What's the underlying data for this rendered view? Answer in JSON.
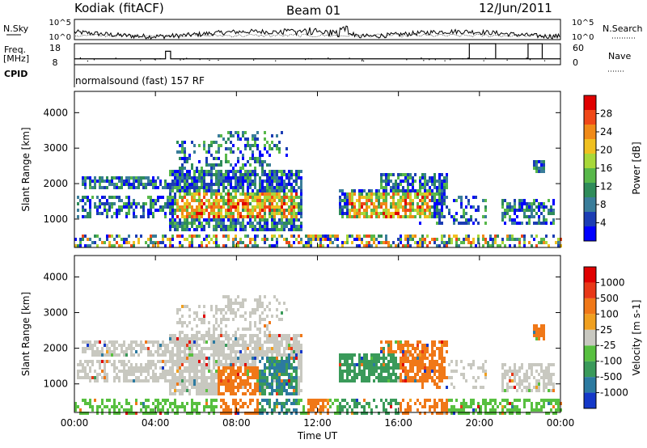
{
  "header": {
    "station": "Kodiak (fitACF)",
    "beam": "Beam 01",
    "date": "12/Jun/2011"
  },
  "labels": {
    "nsky": "N.Sky",
    "freq": "Freq.",
    "freq_unit": "[MHz]",
    "cpid": "CPID",
    "nsearch": "N.Search",
    "nave": "Nave",
    "mode": "normalsound (fast) 157 RF",
    "ylabel": "Slant Range [km]",
    "xlabel": "Time UT"
  },
  "chart_data": [
    {
      "type": "line",
      "panel": "noise",
      "left_axis": {
        "label": "N.Sky",
        "ticks": [
          "10^5",
          "10^0"
        ]
      },
      "right_axis": {
        "label": "N.Search",
        "ticks": [
          "10^5",
          "10^0"
        ]
      },
      "xlim": [
        "00:00",
        "00:00"
      ]
    },
    {
      "type": "line",
      "panel": "frequency",
      "left_axis": {
        "label": "Freq. [MHz]",
        "ticks": [
          18,
          8
        ]
      },
      "right_axis": {
        "label": "Nave",
        "ticks": [
          60,
          0
        ]
      },
      "freq_mhz": [
        10.8,
        10.8,
        14.4,
        10.8,
        10.8,
        10.8,
        10.8,
        10.8,
        10.8,
        10.8,
        10.8,
        10.8
      ],
      "nave": [
        {
          "start_h": 19.5,
          "end_h": 20.8,
          "value": 60
        },
        {
          "start_h": 22.4,
          "end_h": 23.1,
          "value": 60
        }
      ],
      "freq_spike": {
        "start_h": 4.5,
        "end_h": 4.75,
        "value": 14.4
      }
    },
    {
      "type": "heatmap",
      "panel": "power",
      "title": "Power [dB]",
      "ylabel": "Slant Range [km]",
      "y_ticks": [
        1000,
        2000,
        3000,
        4000
      ],
      "ylim": [
        200,
        4600
      ],
      "x_ticks": [
        "00:00",
        "04:00",
        "08:00",
        "12:00",
        "16:00",
        "20:00",
        "00:00"
      ],
      "xlim_hours": [
        0,
        24
      ],
      "colorbar": {
        "label": "Power [dB]",
        "ticks": [
          4,
          8,
          12,
          16,
          20,
          24,
          28
        ],
        "colors": [
          "#0000ff",
          "#1c3db4",
          "#3a7d9a",
          "#2f8c5a",
          "#58b84a",
          "#a8d83a",
          "#f0c020",
          "#f08a18",
          "#f04818",
          "#e00000"
        ]
      }
    },
    {
      "type": "heatmap",
      "panel": "velocity",
      "title": "Velocity [m s^-1]",
      "ylabel": "Slant Range [km]",
      "y_ticks": [
        1000,
        2000,
        3000,
        4000
      ],
      "ylim": [
        200,
        4600
      ],
      "x_ticks": [
        "00:00",
        "04:00",
        "08:00",
        "12:00",
        "16:00",
        "20:00",
        "00:00"
      ],
      "xlim_hours": [
        0,
        24
      ],
      "colorbar": {
        "label": "Velocity [m s-1]",
        "ticks": [
          "1000",
          "500",
          "100",
          "25",
          "-25",
          "-100",
          "-500",
          "-1000"
        ],
        "colors": [
          "#1438c8",
          "#2c7aa0",
          "#3a9a5a",
          "#58c040",
          "#c8c8c0",
          "#f0a020",
          "#f07818",
          "#e83818",
          "#e00000"
        ]
      }
    }
  ]
}
